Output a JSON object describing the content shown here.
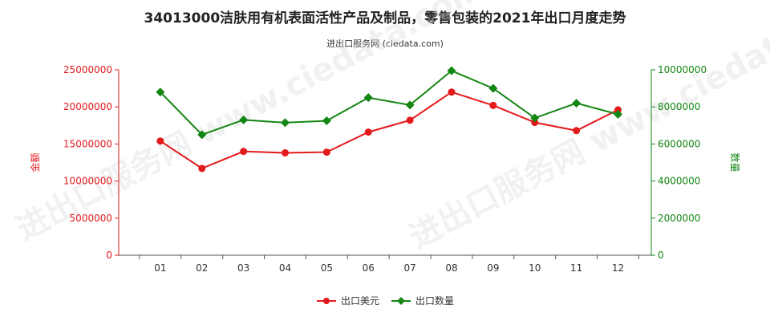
{
  "title": "34013000洁肤用有机表面活性产品及制品，零售包装的2021年出口月度走势",
  "subtitle": "进出口服务网 (ciedata.com)",
  "watermark": "进出口服务网 www.ciedata.com",
  "colors": {
    "amount": "#e31a1c",
    "quantity": "#138613",
    "axis_left": "#e31a1c",
    "axis_right": "#138613"
  },
  "chart_data": {
    "type": "line",
    "categories": [
      "01",
      "02",
      "03",
      "04",
      "05",
      "06",
      "07",
      "08",
      "09",
      "10",
      "11",
      "12"
    ],
    "y_left": {
      "label": "金额",
      "range": [
        0,
        25000000
      ],
      "ticks": [
        "0",
        "5000000",
        "10000000",
        "15000000",
        "20000000",
        "25000000"
      ]
    },
    "y_right": {
      "label": "数量",
      "range": [
        0,
        10000000
      ],
      "ticks": [
        "0",
        "2000000",
        "4000000",
        "6000000",
        "8000000",
        "10000000"
      ]
    },
    "series": [
      {
        "name": "出口美元",
        "axis": "left",
        "color": "#e31a1c",
        "values": [
          15400000,
          11700000,
          14000000,
          13800000,
          13900000,
          16600000,
          18200000,
          22000000,
          20200000,
          17900000,
          16800000,
          19600000
        ]
      },
      {
        "name": "出口数量",
        "axis": "right",
        "color": "#138613",
        "values": [
          8800000,
          6500000,
          7300000,
          7150000,
          7250000,
          8500000,
          8100000,
          9950000,
          9000000,
          7400000,
          8200000,
          7600000
        ]
      }
    ],
    "grid": false,
    "legend": "bottom-center"
  }
}
